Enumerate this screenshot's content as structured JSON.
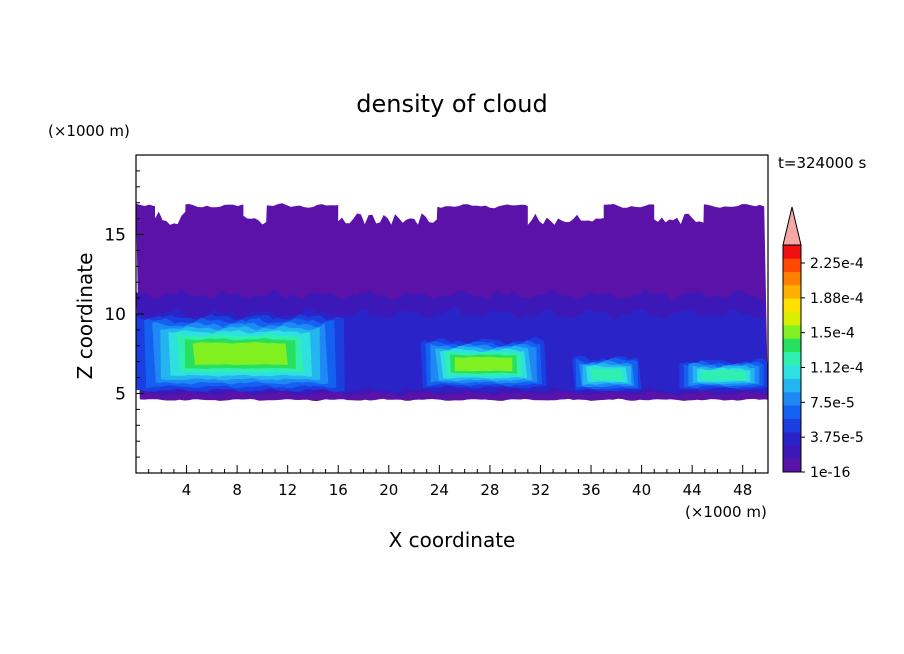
{
  "chart_data": {
    "type": "heatmap",
    "title": "density of cloud",
    "xlabel": "X coordinate",
    "ylabel": "Z coordinate",
    "x_unit": "(×1000 m)",
    "y_unit": "(×1000 m)",
    "time_label": "t=324000 s",
    "xlim": [
      0,
      50
    ],
    "ylim": [
      0,
      20
    ],
    "x_ticks": [
      4,
      8,
      12,
      16,
      20,
      24,
      28,
      32,
      36,
      40,
      44,
      48
    ],
    "y_ticks": [
      5,
      10,
      15
    ],
    "colorbar": {
      "labels": [
        "1e-16",
        "3.75e-5",
        "7.5e-5",
        "1.12e-4",
        "1.5e-4",
        "1.88e-4",
        "2.25e-4"
      ],
      "level_colors": [
        "#5a12a8",
        "#3d18b8",
        "#2a24c8",
        "#1a3ee0",
        "#1460f0",
        "#1e88f5",
        "#24b4f0",
        "#2ee0e0",
        "#30f0b0",
        "#28e060",
        "#80f020",
        "#d8f000",
        "#ffe000",
        "#ffb000",
        "#ff8000",
        "#ff4800",
        "#f01010"
      ],
      "extend_color": "#f4a8a8"
    },
    "field_bands": [
      {
        "level": "1e-16",
        "z_range": [
          4.6,
          16.8
        ],
        "note_x_gaps_top": [
          [
            1.5,
            4
          ],
          [
            8.5,
            10.5
          ],
          [
            16,
            24
          ],
          [
            31,
            37
          ],
          [
            41,
            45
          ]
        ]
      },
      {
        "level": "3.75e-5",
        "z_range": [
          5.0,
          11.0
        ]
      },
      {
        "level": "7.5e-5",
        "z_range": [
          5.5,
          9.5
        ]
      },
      {
        "level": "1.12e-4",
        "z_range": [
          6.0,
          8.5
        ]
      },
      {
        "level": "1.5e-4",
        "z_range": [
          7.0,
          7.8
        ]
      }
    ],
    "features": [
      {
        "x_range": [
          0,
          16.5
        ],
        "z_range": [
          5.2,
          9.8
        ],
        "peak_level": "1.5e-4"
      },
      {
        "x_range": [
          22.5,
          32.5
        ],
        "z_range": [
          5.4,
          8.3
        ],
        "peak_level": "1.5e-4"
      },
      {
        "x_range": [
          34.5,
          40
        ],
        "z_range": [
          5.2,
          7.2
        ],
        "peak_level": "1.12e-4"
      },
      {
        "x_range": [
          43,
          50
        ],
        "z_range": [
          5.3,
          7.0
        ],
        "peak_level": "1.12e-4"
      }
    ]
  }
}
